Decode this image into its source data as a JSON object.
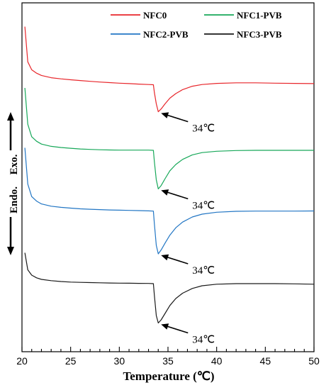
{
  "chart_data": {
    "type": "line",
    "xlabel": "Temperature (℃)",
    "ylabel_endo": "Endo.",
    "ylabel_exo": "Exo.",
    "xlim": [
      20,
      50
    ],
    "xticks": [
      "20",
      "25",
      "30",
      "35",
      "40",
      "45",
      "50"
    ],
    "legend_position": "top",
    "y_tick_labels": false,
    "series": [
      {
        "name": "NFC0",
        "color": "#e8262b",
        "x": [
          20.3,
          20.6,
          21,
          21.5,
          22,
          23,
          24,
          25,
          26,
          27,
          28,
          29,
          30,
          31,
          32,
          33,
          33.5,
          33.6,
          33.8,
          34,
          34.3,
          34.7,
          35.2,
          35.8,
          36.5,
          37.5,
          38.5,
          40,
          42,
          44,
          46,
          48,
          50
        ],
        "y": [
          4.9,
          1.8,
          1.1,
          0.8,
          0.6,
          0.4,
          0.3,
          0.22,
          0.15,
          0.08,
          0.02,
          -0.03,
          -0.08,
          -0.12,
          -0.16,
          -0.2,
          -0.22,
          -0.9,
          -1.9,
          -2.6,
          -2.35,
          -1.9,
          -1.4,
          -1.0,
          -0.65,
          -0.35,
          -0.2,
          -0.1,
          -0.05,
          -0.05,
          -0.08,
          -0.1,
          -0.12
        ]
      },
      {
        "name": "NFC1-PVB",
        "color": "#17a859",
        "x": [
          20.3,
          20.6,
          21,
          21.5,
          22,
          23,
          24,
          25,
          26,
          27,
          28,
          29,
          30,
          31,
          32,
          33,
          33.5,
          33.6,
          33.8,
          34,
          34.3,
          34.7,
          35.2,
          35.8,
          36.5,
          37.5,
          38.5,
          40,
          42,
          44,
          46,
          48,
          50
        ],
        "y": [
          5.5,
          2.3,
          1.2,
          0.8,
          0.55,
          0.35,
          0.25,
          0.18,
          0.12,
          0.08,
          0.05,
          0.03,
          0.02,
          0.02,
          0.02,
          0.02,
          0.0,
          -1.0,
          -2.6,
          -3.4,
          -3.1,
          -2.5,
          -1.8,
          -1.25,
          -0.8,
          -0.4,
          -0.2,
          -0.08,
          -0.02,
          0.0,
          0.0,
          0.0,
          0.0
        ]
      },
      {
        "name": "NFC2-PVB",
        "color": "#2276c4",
        "x": [
          20.3,
          20.6,
          21,
          21.5,
          22,
          23,
          24,
          25,
          26,
          27,
          28,
          29,
          30,
          31,
          32,
          33,
          33.5,
          33.6,
          33.8,
          34,
          34.3,
          34.7,
          35.2,
          35.8,
          36.5,
          37.5,
          38.5,
          40,
          42,
          44,
          46,
          48,
          50
        ],
        "y": [
          5.6,
          2.4,
          1.3,
          0.9,
          0.65,
          0.45,
          0.35,
          0.28,
          0.22,
          0.18,
          0.15,
          0.12,
          0.1,
          0.08,
          0.06,
          0.04,
          0.02,
          -1.1,
          -3.0,
          -3.75,
          -3.4,
          -2.8,
          -2.1,
          -1.45,
          -0.95,
          -0.5,
          -0.25,
          -0.08,
          0.0,
          0.02,
          0.02,
          0.02,
          0.03
        ]
      },
      {
        "name": "NFC3-PVB",
        "color": "#1a1a1a",
        "x": [
          20.3,
          20.6,
          21,
          21.5,
          22,
          23,
          24,
          25,
          26,
          27,
          28,
          29,
          30,
          31,
          32,
          33,
          33.5,
          33.6,
          33.8,
          34,
          34.3,
          34.7,
          35.2,
          35.8,
          36.5,
          37.5,
          38.5,
          40,
          42,
          44,
          46,
          48,
          50
        ],
        "y": [
          2.9,
          1.3,
          0.8,
          0.55,
          0.4,
          0.28,
          0.2,
          0.15,
          0.12,
          0.1,
          0.08,
          0.06,
          0.05,
          0.04,
          0.03,
          0.02,
          0.0,
          -1.1,
          -3.0,
          -3.7,
          -3.4,
          -2.8,
          -2.05,
          -1.4,
          -0.9,
          -0.45,
          -0.2,
          -0.05,
          0.0,
          0.0,
          0.0,
          -0.02,
          -0.05
        ]
      }
    ],
    "annotations": [
      {
        "text": "34℃",
        "series": 0,
        "x": 34.0
      },
      {
        "text": "34℃",
        "series": 1,
        "x": 34.0
      },
      {
        "text": "34℃",
        "series": 2,
        "x": 34.0
      },
      {
        "text": "34℃",
        "series": 3,
        "x": 34.0
      }
    ]
  }
}
